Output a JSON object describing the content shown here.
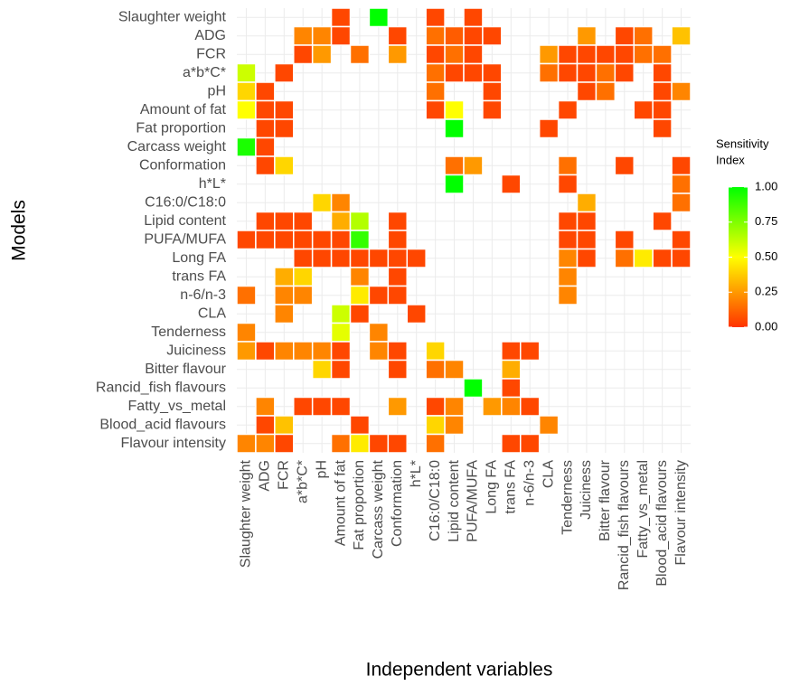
{
  "chart_data": {
    "type": "heatmap",
    "x_label": "Independent variables",
    "y_label": "Models",
    "x_categories": [
      "Slaughter weight",
      "ADG",
      "FCR",
      "a*b*C*",
      "pH",
      "Amount of fat",
      "Fat proportion",
      "Carcass weight",
      "Conformation",
      "h*L*",
      "C16:0/C18:0",
      "Lipid content",
      "PUFA/MUFA",
      "Long FA",
      "trans FA",
      "n-6/n-3",
      "CLA",
      "Tenderness",
      "Juiciness",
      "Bitter flavour",
      "Rancid_fish flavours",
      "Fatty_vs_metal",
      "Blood_acid flavours",
      "Flavour intensity"
    ],
    "y_categories": [
      "Slaughter weight",
      "ADG",
      "FCR",
      "a*b*C*",
      "pH",
      "Amount of fat",
      "Fat proportion",
      "Carcass weight",
      "Conformation",
      "h*L*",
      "C16:0/C18:0",
      "Lipid content",
      "PUFA/MUFA",
      "Long FA",
      "trans FA",
      "n-6/n-3",
      "CLA",
      "Tenderness",
      "Juiciness",
      "Bitter flavour",
      "Rancid_fish flavours",
      "Fatty_vs_metal",
      "Blood_acid flavours",
      "Flavour intensity"
    ],
    "values": [
      [
        null,
        null,
        null,
        null,
        null,
        0.05,
        null,
        1,
        null,
        null,
        0.05,
        null,
        0.05,
        null,
        null,
        null,
        null,
        null,
        null,
        null,
        null,
        null,
        null,
        null
      ],
      [
        null,
        null,
        null,
        0.2,
        0.2,
        0.05,
        null,
        null,
        0.05,
        null,
        0.15,
        0.1,
        0.05,
        0.05,
        null,
        null,
        null,
        null,
        0.25,
        null,
        0.05,
        0.15,
        null,
        0.35
      ],
      [
        null,
        null,
        null,
        0.05,
        0.25,
        null,
        0.15,
        null,
        0.25,
        null,
        0.05,
        0.15,
        0.05,
        null,
        null,
        null,
        0.25,
        0.05,
        0.05,
        0.05,
        0.05,
        0.15,
        0.15,
        null
      ],
      [
        0.6,
        null,
        0.05,
        null,
        null,
        null,
        null,
        null,
        null,
        null,
        0.15,
        0.05,
        0.05,
        0.05,
        null,
        null,
        0.15,
        0.05,
        0.05,
        0.15,
        0.05,
        null,
        0.05,
        null
      ],
      [
        0.4,
        0.05,
        null,
        null,
        null,
        null,
        null,
        null,
        null,
        null,
        0.15,
        null,
        null,
        0.05,
        null,
        null,
        null,
        null,
        0.05,
        0.15,
        null,
        null,
        0.05,
        0.2
      ],
      [
        0.5,
        0.05,
        0.05,
        null,
        null,
        null,
        null,
        null,
        null,
        null,
        0.05,
        0.5,
        null,
        0.05,
        null,
        null,
        null,
        0.05,
        null,
        null,
        null,
        0.05,
        0.05,
        null
      ],
      [
        null,
        0.05,
        0.05,
        null,
        null,
        null,
        null,
        null,
        null,
        null,
        null,
        1,
        null,
        null,
        null,
        null,
        0.05,
        null,
        null,
        null,
        null,
        null,
        0.05,
        null
      ],
      [
        0.95,
        0.05,
        null,
        null,
        null,
        null,
        null,
        null,
        null,
        null,
        null,
        null,
        null,
        null,
        null,
        null,
        null,
        null,
        null,
        null,
        null,
        null,
        null,
        null
      ],
      [
        null,
        0.05,
        0.4,
        null,
        null,
        null,
        null,
        null,
        null,
        null,
        null,
        0.15,
        0.25,
        null,
        null,
        null,
        null,
        0.15,
        null,
        null,
        0.05,
        null,
        null,
        0.05
      ],
      [
        null,
        null,
        null,
        null,
        null,
        null,
        null,
        null,
        null,
        null,
        null,
        1,
        null,
        null,
        0.05,
        null,
        null,
        0.05,
        null,
        null,
        null,
        null,
        null,
        0.15
      ],
      [
        null,
        null,
        null,
        null,
        0.4,
        0.2,
        null,
        null,
        null,
        null,
        null,
        null,
        null,
        null,
        null,
        null,
        null,
        null,
        0.3,
        null,
        null,
        null,
        null,
        0.15
      ],
      [
        null,
        0.05,
        0.05,
        0.05,
        null,
        0.3,
        0.65,
        null,
        0.05,
        null,
        null,
        null,
        null,
        null,
        null,
        null,
        null,
        0.05,
        0.05,
        null,
        null,
        null,
        0.05,
        null
      ],
      [
        0.05,
        0.05,
        0.05,
        0.05,
        0.05,
        0.05,
        0.9,
        null,
        0.05,
        null,
        null,
        null,
        null,
        null,
        null,
        null,
        null,
        0.05,
        0.05,
        null,
        0.05,
        null,
        null,
        0.05
      ],
      [
        null,
        null,
        null,
        0.05,
        0.05,
        0.05,
        0.05,
        0.05,
        0.05,
        0.05,
        null,
        null,
        null,
        null,
        null,
        null,
        null,
        0.2,
        0.05,
        null,
        0.15,
        0.45,
        0.05,
        0.05
      ],
      [
        null,
        null,
        0.3,
        0.4,
        null,
        null,
        0.2,
        null,
        0.05,
        null,
        null,
        null,
        null,
        null,
        null,
        null,
        null,
        0.2,
        null,
        null,
        null,
        null,
        null,
        null
      ],
      [
        0.15,
        null,
        0.2,
        0.2,
        null,
        null,
        0.45,
        0.05,
        0.05,
        null,
        null,
        null,
        null,
        null,
        null,
        null,
        null,
        0.2,
        null,
        null,
        null,
        null,
        null,
        null
      ],
      [
        null,
        null,
        0.2,
        null,
        null,
        0.6,
        0.05,
        null,
        null,
        0.05,
        null,
        null,
        null,
        null,
        null,
        null,
        null,
        null,
        null,
        null,
        null,
        null,
        null,
        null
      ],
      [
        0.2,
        null,
        null,
        null,
        null,
        0.55,
        null,
        0.2,
        null,
        null,
        null,
        null,
        null,
        null,
        null,
        null,
        null,
        null,
        null,
        null,
        null,
        null,
        null,
        null
      ],
      [
        0.25,
        0.05,
        0.2,
        0.2,
        0.2,
        0.05,
        null,
        0.2,
        0.05,
        null,
        0.4,
        null,
        null,
        null,
        0.05,
        0.05,
        null,
        null,
        null,
        null,
        null,
        null,
        null,
        null
      ],
      [
        null,
        null,
        null,
        null,
        0.4,
        0.05,
        null,
        null,
        0.05,
        null,
        0.15,
        0.2,
        null,
        null,
        0.3,
        null,
        null,
        null,
        null,
        null,
        null,
        null,
        null,
        null
      ],
      [
        null,
        null,
        null,
        null,
        null,
        null,
        null,
        null,
        null,
        null,
        null,
        null,
        1,
        null,
        0.05,
        null,
        null,
        null,
        null,
        null,
        null,
        null,
        null,
        null
      ],
      [
        null,
        0.2,
        null,
        0.05,
        0.05,
        0.05,
        null,
        null,
        0.25,
        null,
        0.05,
        0.2,
        null,
        0.25,
        0.2,
        0.05,
        null,
        null,
        null,
        null,
        null,
        null,
        null,
        null
      ],
      [
        null,
        0.05,
        0.35,
        null,
        null,
        null,
        0.05,
        null,
        null,
        null,
        0.4,
        0.2,
        null,
        null,
        null,
        null,
        0.2,
        null,
        null,
        null,
        null,
        null,
        null,
        null
      ],
      [
        0.2,
        0.2,
        0.05,
        null,
        null,
        0.15,
        0.45,
        0.05,
        0.05,
        null,
        0.15,
        null,
        null,
        null,
        0.05,
        0.05,
        null,
        null,
        null,
        null,
        null,
        null,
        null,
        null
      ]
    ],
    "color_scale": [
      "#ff3300",
      "#ffff00",
      "#00ff00"
    ],
    "clim": [
      0,
      1
    ],
    "legend_title": [
      "Sensitivity",
      "Index"
    ],
    "legend_ticks": [
      {
        "value": 0,
        "label": "0.00"
      },
      {
        "value": 0.25,
        "label": "0.25"
      },
      {
        "value": 0.5,
        "label": "0.50"
      },
      {
        "value": 0.75,
        "label": "0.75"
      },
      {
        "value": 1,
        "label": "1.00"
      }
    ],
    "grid": true
  }
}
